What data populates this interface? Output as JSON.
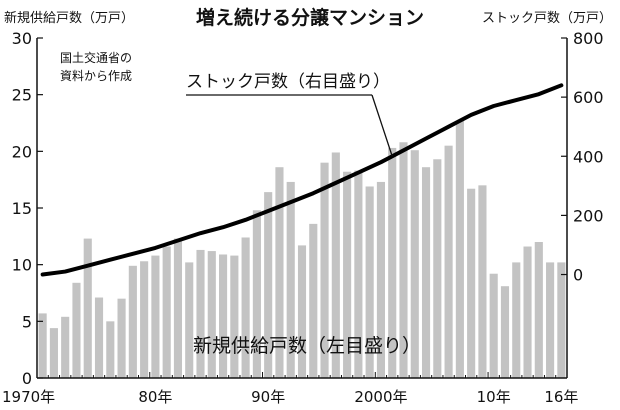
{
  "chart_data": {
    "type": "bar",
    "title": "増え続ける分譲マンション",
    "y_left_label": "新規供給戸数（万戸）",
    "y_right_label": "ストック戸数（万戸）",
    "source_note_lines": [
      "国土交通省の",
      "資料から作成"
    ],
    "y_left_range": [
      0,
      30
    ],
    "y_left_ticks": [
      0,
      5,
      10,
      15,
      20,
      25,
      30
    ],
    "y_right_range": [
      -350,
      800
    ],
    "y_right_ticks": [
      0,
      200,
      400,
      600,
      800
    ],
    "x_range": [
      1970,
      2016
    ],
    "x_tick_labels": [
      {
        "year": 1970,
        "label": "1970年"
      },
      {
        "year": 1980,
        "label": "80年"
      },
      {
        "year": 1990,
        "label": "90年"
      },
      {
        "year": 2000,
        "label": "2000年"
      },
      {
        "year": 2010,
        "label": "10年"
      },
      {
        "year": 2016,
        "label": "16年"
      }
    ],
    "grid": false,
    "bar_color": "#c3c3c3",
    "line_color": "#000000",
    "series": [
      {
        "name": "新規供給戸数（左目盛り）",
        "axis": "left",
        "type": "bar",
        "x": [
          1970,
          1971,
          1972,
          1973,
          1974,
          1975,
          1976,
          1977,
          1978,
          1979,
          1980,
          1981,
          1982,
          1983,
          1984,
          1985,
          1986,
          1987,
          1988,
          1989,
          1990,
          1991,
          1992,
          1993,
          1994,
          1995,
          1996,
          1997,
          1998,
          1999,
          2000,
          2001,
          2002,
          2003,
          2004,
          2005,
          2006,
          2007,
          2008,
          2009,
          2010,
          2011,
          2012,
          2013,
          2014,
          2015,
          2016
        ],
        "values": [
          5.7,
          4.4,
          5.4,
          8.4,
          12.3,
          7.1,
          5.0,
          7.0,
          9.9,
          10.3,
          10.8,
          11.6,
          12.3,
          10.2,
          11.3,
          11.2,
          10.9,
          10.8,
          12.4,
          14.8,
          16.4,
          18.6,
          17.3,
          11.7,
          13.6,
          19.0,
          19.9,
          18.2,
          18.3,
          16.9,
          17.3,
          20.3,
          20.8,
          20.1,
          18.6,
          19.3,
          20.5,
          22.7,
          16.7,
          17.0,
          9.2,
          8.1,
          10.2,
          11.6,
          12.0,
          10.2,
          10.2
        ]
      },
      {
        "name": "ストック戸数（右目盛り）",
        "axis": "right",
        "type": "line",
        "x": [
          1970,
          1972,
          1974,
          1976,
          1978,
          1980,
          1982,
          1984,
          1986,
          1988,
          1990,
          1992,
          1994,
          1996,
          1998,
          2000,
          2002,
          2004,
          2006,
          2008,
          2010,
          2012,
          2014,
          2016
        ],
        "values": [
          0,
          10,
          30,
          50,
          70,
          90,
          115,
          140,
          160,
          185,
          215,
          245,
          275,
          310,
          345,
          380,
          420,
          460,
          500,
          540,
          570,
          590,
          610,
          640
        ]
      }
    ]
  }
}
